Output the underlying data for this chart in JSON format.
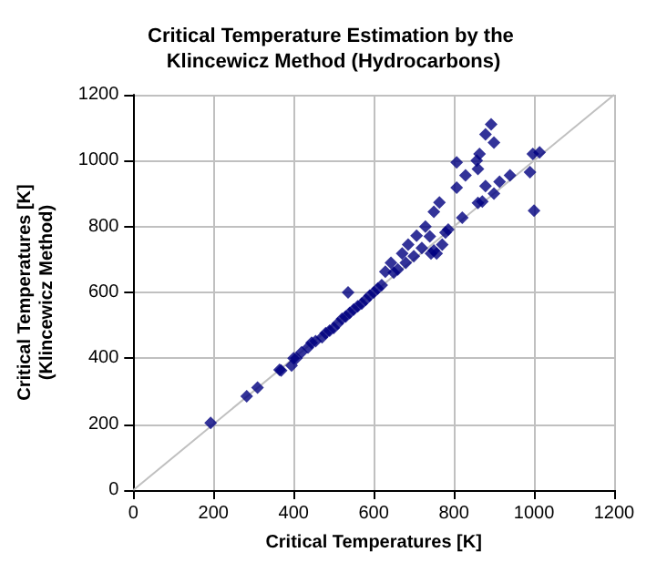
{
  "chart_data": {
    "type": "scatter",
    "title": "Critical Temperature Estimation by the Klincewicz Method (Hydrocarbons)",
    "xlabel": "Critical Temperatures [K]",
    "ylabel": "Critical Temperatures [K]\n(Klincewicz Method)",
    "xlim": [
      0,
      1200
    ],
    "ylim": [
      0,
      1200
    ],
    "xticks": [
      0,
      200,
      400,
      600,
      800,
      1000,
      1200
    ],
    "yticks": [
      0,
      200,
      400,
      600,
      800,
      1000,
      1200
    ],
    "grid": true,
    "marker": "diamond",
    "series": [
      {
        "color": "#000080",
        "x": [
          193,
          283,
          310,
          365,
          369,
          395,
          400,
          407,
          420,
          436,
          445,
          455,
          471,
          480,
          490,
          500,
          510,
          521,
          530,
          540,
          550,
          560,
          570,
          580,
          590,
          600,
          610,
          620,
          629,
          536,
          643,
          650,
          660,
          671,
          680,
          686,
          700,
          707,
          720,
          729,
          740,
          750,
          764,
          757,
          743,
          771,
          786,
          779,
          750,
          807,
          821,
          829,
          807,
          857,
          860,
          864,
          871,
          860,
          879,
          879,
          893,
          900,
          900,
          914,
          940,
          990,
          997,
          1014,
          1000
        ],
        "values": [
          204,
          285,
          311,
          365,
          363,
          378,
          400,
          400,
          418,
          433,
          447,
          452,
          464,
          476,
          484,
          492,
          505,
          520,
          527,
          538,
          548,
          558,
          566,
          578,
          590,
          600,
          612,
          622,
          663,
          600,
          690,
          660,
          670,
          718,
          690,
          745,
          710,
          772,
          735,
          800,
          770,
          845,
          873,
          718,
          718,
          745,
          791,
          782,
          727,
          918,
          827,
          955,
          995,
          1000,
          975,
          1020,
          876,
          872,
          923,
          1080,
          1110,
          1055,
          900,
          936,
          955,
          965,
          1020,
          1025,
          848
        ]
      },
      {
        "type": "line",
        "color": "#c0c0c0",
        "x": [
          0,
          1200
        ],
        "values": [
          0,
          1200
        ],
        "marker": "none"
      }
    ]
  }
}
